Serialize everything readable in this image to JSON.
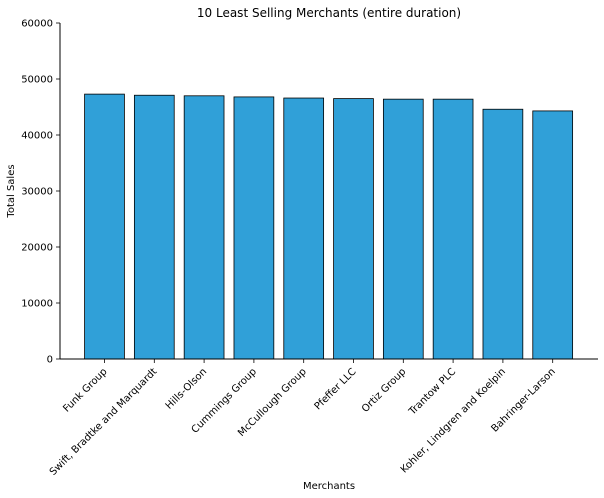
{
  "chart_data": {
    "type": "bar",
    "title": "10 Least Selling Merchants (entire duration)",
    "xlabel": "Merchants",
    "ylabel": "Total Sales",
    "ylim": [
      0,
      60000
    ],
    "yticks": [
      0,
      10000,
      20000,
      30000,
      40000,
      50000,
      60000
    ],
    "grid": false,
    "bar_color": "#30a0d8",
    "categories": [
      "Funk Group",
      "Swift, Bradtke and Marquardt",
      "Hills-Olson",
      "Cummings Group",
      "McCullough Group",
      "Pfeffer LLC",
      "Ortiz Group",
      "Trantow PLC",
      "Kohler, Lindgren and Koelpin",
      "Bahringer-Larson"
    ],
    "values": [
      47300,
      47100,
      47000,
      46800,
      46600,
      46500,
      46400,
      46400,
      44600,
      44300
    ]
  }
}
